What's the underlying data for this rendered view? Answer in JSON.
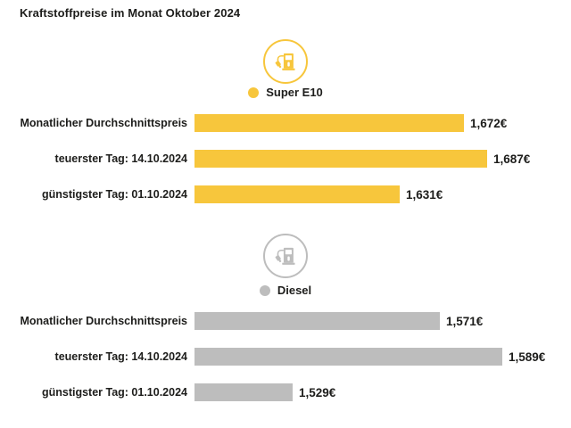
{
  "title": "Kraftstoffpreise im Monat Oktober 2024",
  "colors": {
    "super_e10": "#F7C63C",
    "diesel": "#BDBDBD",
    "text": "#1D1D1B",
    "background": "#FFFFFF"
  },
  "chart_data": {
    "type": "bar",
    "orientation": "horizontal",
    "title": "Kraftstoffpreise im Monat Oktober 2024",
    "unit": "€ pro Liter",
    "value_axis_hidden": true,
    "grid": false,
    "groups": [
      {
        "name": "Super E10",
        "color": "#F7C63C",
        "icon": "fuel-pump-icon",
        "categories": [
          "Monatlicher Durchschnittspreis",
          "teuerster Tag: 14.10.2024",
          "günstigster Tag: 01.10.2024"
        ],
        "values": [
          1.672,
          1.687,
          1.631
        ],
        "value_labels": [
          "1,672€",
          "1,687€",
          "1,631€"
        ],
        "bar_scale": {
          "v0": 1.631,
          "w0": 230,
          "v1": 1.687,
          "w1": 328
        }
      },
      {
        "name": "Diesel",
        "color": "#BDBDBD",
        "icon": "fuel-pump-icon",
        "categories": [
          "Monatlicher Durchschnittspreis",
          "teuerster Tag: 14.10.2024",
          "günstigster Tag: 01.10.2024"
        ],
        "values": [
          1.571,
          1.589,
          1.529
        ],
        "value_labels": [
          "1,571€",
          "1,589€",
          "1,529€"
        ],
        "bar_scale": {
          "v0": 1.529,
          "w0": 110,
          "v1": 1.589,
          "w1": 345
        }
      }
    ]
  }
}
